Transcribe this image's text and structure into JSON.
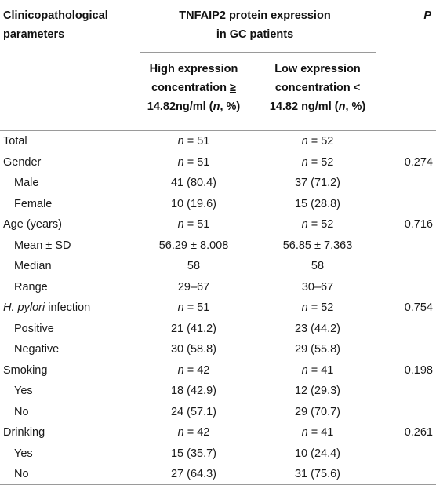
{
  "header": {
    "param_line1": "Clinicopathological",
    "param_line2": "parameters",
    "group_line1": "TNFAIP2 protein expression",
    "group_line2": "in GC patients",
    "p_label": "P",
    "high": {
      "line1": "High expression",
      "line2_text": "concentration ",
      "line2_sym": "≥",
      "line3_value": "14.82ng/ml (",
      "line3_n": "n",
      "line3_tail": ", %)"
    },
    "low": {
      "line1": "Low expression",
      "line2_text": "concentration <",
      "line3_value": "14.82 ng/ml (",
      "line3_n": "n",
      "line3_tail": ", %)"
    }
  },
  "rows": [
    {
      "label": "Total",
      "sub": false,
      "high": "n = 51",
      "low": "n = 52",
      "p": ""
    },
    {
      "label": "Gender",
      "sub": false,
      "high": "n = 51",
      "low": "n = 52",
      "p": "0.274"
    },
    {
      "label": "Male",
      "sub": true,
      "high": "41 (80.4)",
      "low": "37 (71.2)",
      "p": ""
    },
    {
      "label": "Female",
      "sub": true,
      "high": "10 (19.6)",
      "low": "15 (28.8)",
      "p": ""
    },
    {
      "label": "Age (years)",
      "sub": false,
      "high": "n = 51",
      "low": "n = 52",
      "p": "0.716"
    },
    {
      "label": "Mean ± SD",
      "sub": true,
      "high": "56.29 ± 8.008",
      "low": "56.85 ± 7.363",
      "p": ""
    },
    {
      "label": "Median",
      "sub": true,
      "high": "58",
      "low": "58",
      "p": ""
    },
    {
      "label": "Range",
      "sub": true,
      "high": "29–67",
      "low": "30–67",
      "p": ""
    },
    {
      "label_italic": "H. pylori",
      "label_rest": " infection",
      "sub": false,
      "high": "n = 51",
      "low": "n = 52",
      "p": "0.754"
    },
    {
      "label": "Positive",
      "sub": true,
      "high": "21 (41.2)",
      "low": "23 (44.2)",
      "p": ""
    },
    {
      "label": "Negative",
      "sub": true,
      "high": "30 (58.8)",
      "low": "29 (55.8)",
      "p": ""
    },
    {
      "label": "Smoking",
      "sub": false,
      "high": "n = 42",
      "low": "n = 41",
      "p": "0.198"
    },
    {
      "label": "Yes",
      "sub": true,
      "high": "18 (42.9)",
      "low": "12 (29.3)",
      "p": ""
    },
    {
      "label": "No",
      "sub": true,
      "high": "24 (57.1)",
      "low": "29 (70.7)",
      "p": ""
    },
    {
      "label": "Drinking",
      "sub": false,
      "high": "n = 42",
      "low": "n = 41",
      "p": "0.261"
    },
    {
      "label": "Yes",
      "sub": true,
      "high": "15 (35.7)",
      "low": "10 (24.4)",
      "p": ""
    },
    {
      "label": "No",
      "sub": true,
      "high": "27 (64.3)",
      "low": "31 (75.6)",
      "p": ""
    }
  ]
}
